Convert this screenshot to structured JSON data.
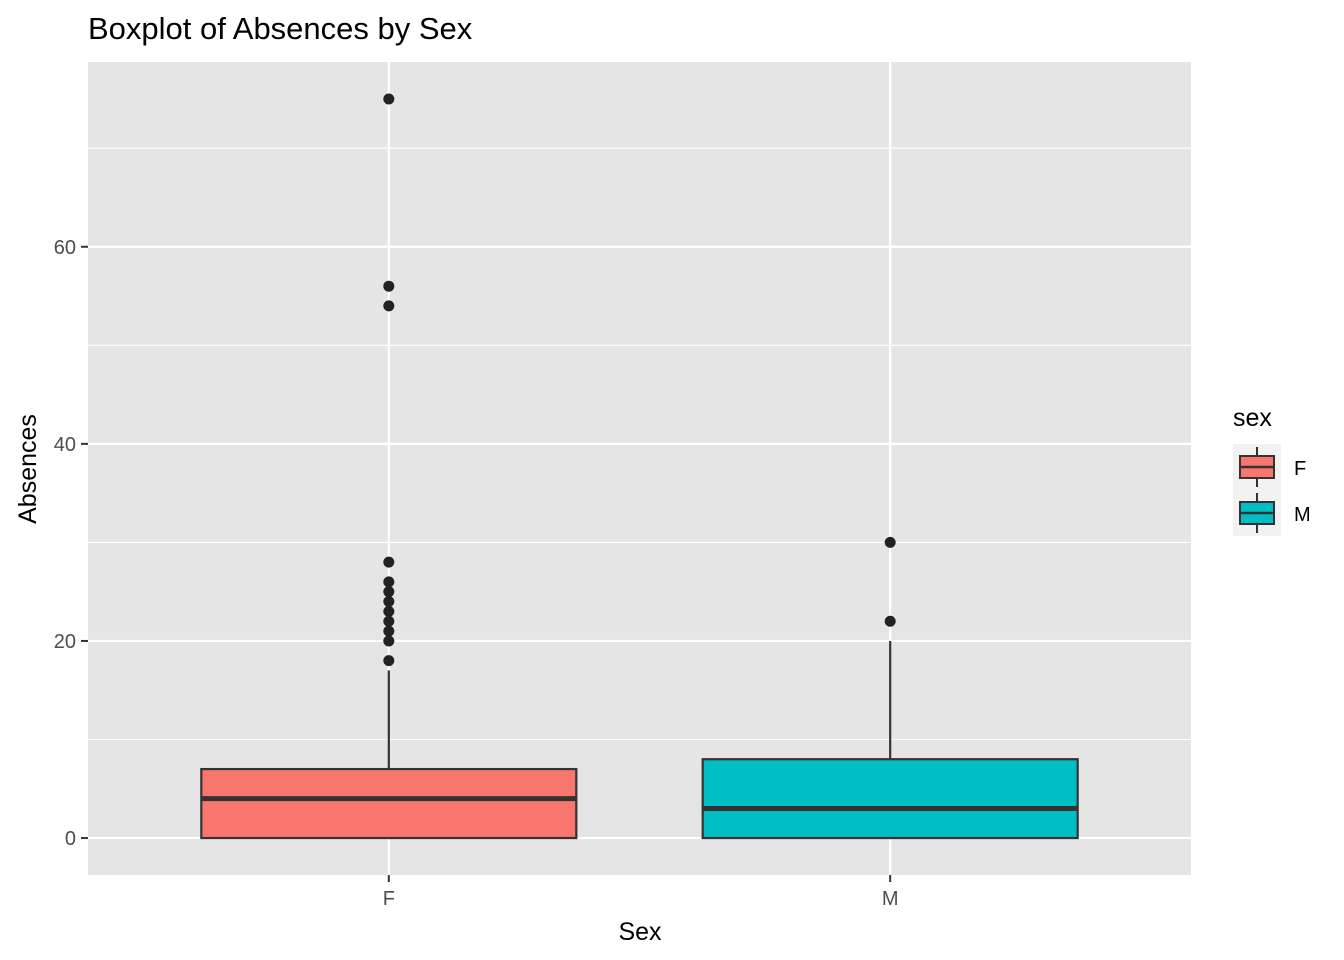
{
  "chart_data": {
    "type": "boxplot",
    "title": "Boxplot of Absences by Sex",
    "xlabel": "Sex",
    "ylabel": "Absences",
    "categories": [
      "F",
      "M"
    ],
    "y_ticks": [
      0,
      20,
      40,
      60
    ],
    "y_minor_ticks": [
      10,
      30,
      50,
      70
    ],
    "ylim": [
      -3.75,
      78.75
    ],
    "grid": true,
    "legend": {
      "title": "sex",
      "placement": "right",
      "entries": [
        {
          "label": "F",
          "color": "#F8766D"
        },
        {
          "label": "M",
          "color": "#00BFC4"
        }
      ]
    },
    "series": [
      {
        "name": "F",
        "color": "#F8766D",
        "whisker_low": 0,
        "q1": 0,
        "median": 4,
        "q3": 7,
        "whisker_high": 17,
        "outliers": [
          18,
          20,
          21,
          22,
          23,
          24,
          25,
          26,
          28,
          54,
          56,
          75
        ]
      },
      {
        "name": "M",
        "color": "#00BFC4",
        "whisker_low": 0,
        "q1": 0,
        "median": 3,
        "q3": 8,
        "whisker_high": 20,
        "outliers": [
          22,
          30
        ]
      }
    ],
    "colors": {
      "panel_background": "#E5E5E5",
      "grid": "#FFFFFF",
      "box_outline": "#333333",
      "point": "#222222"
    }
  }
}
